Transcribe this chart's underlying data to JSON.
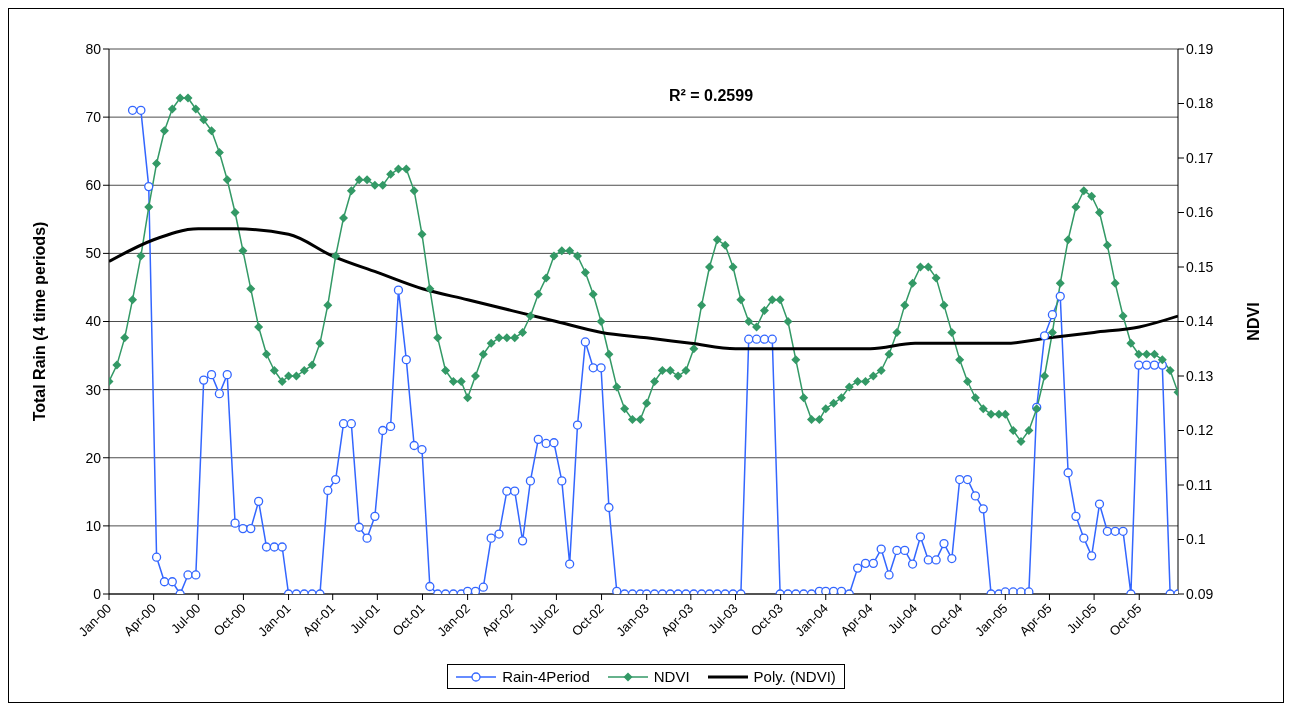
{
  "chart_data": {
    "type": "line",
    "ylabel": "Total Rain (4 time periods)",
    "y2label": "NDVI",
    "annotations": [
      "R² = 0.2599"
    ],
    "x": [
      "2000-01-01",
      "2000-01-17",
      "2000-02-02",
      "2000-02-18",
      "2000-03-06",
      "2000-03-22",
      "2000-04-07",
      "2000-04-23",
      "2000-05-09",
      "2000-05-25",
      "2000-06-10",
      "2000-06-26",
      "2000-07-12",
      "2000-07-28",
      "2000-08-13",
      "2000-08-29",
      "2000-09-14",
      "2000-09-30",
      "2000-10-16",
      "2000-11-01",
      "2000-11-17",
      "2000-12-03",
      "2000-12-19",
      "2001-01-01",
      "2001-01-17",
      "2001-02-02",
      "2001-02-18",
      "2001-03-06",
      "2001-03-22",
      "2001-04-07",
      "2001-04-23",
      "2001-05-09",
      "2001-05-25",
      "2001-06-10",
      "2001-06-26",
      "2001-07-12",
      "2001-07-28",
      "2001-08-13",
      "2001-08-29",
      "2001-09-14",
      "2001-09-30",
      "2001-10-16",
      "2001-11-01",
      "2001-11-17",
      "2001-12-03",
      "2001-12-19",
      "2002-01-01",
      "2002-01-17",
      "2002-02-02",
      "2002-02-18",
      "2002-03-06",
      "2002-03-22",
      "2002-04-07",
      "2002-04-23",
      "2002-05-09",
      "2002-05-25",
      "2002-06-10",
      "2002-06-26",
      "2002-07-12",
      "2002-07-28",
      "2002-08-13",
      "2002-08-29",
      "2002-09-14",
      "2002-09-30",
      "2002-10-16",
      "2002-11-01",
      "2002-11-17",
      "2002-12-03",
      "2002-12-19",
      "2003-01-01",
      "2003-01-17",
      "2003-02-02",
      "2003-02-18",
      "2003-03-06",
      "2003-03-22",
      "2003-04-07",
      "2003-04-23",
      "2003-05-09",
      "2003-05-25",
      "2003-06-10",
      "2003-06-26",
      "2003-07-12",
      "2003-07-28",
      "2003-08-13",
      "2003-08-29",
      "2003-09-14",
      "2003-09-30",
      "2003-10-16",
      "2003-11-01",
      "2003-11-17",
      "2003-12-03",
      "2003-12-19",
      "2004-01-01",
      "2004-01-17",
      "2004-02-02",
      "2004-02-18",
      "2004-03-06",
      "2004-03-22",
      "2004-04-07",
      "2004-04-23",
      "2004-05-09",
      "2004-05-25",
      "2004-06-10",
      "2004-06-26",
      "2004-07-12",
      "2004-07-28",
      "2004-08-13",
      "2004-08-29",
      "2004-09-14",
      "2004-09-30",
      "2004-10-16",
      "2004-11-01",
      "2004-11-17",
      "2004-12-03",
      "2004-12-19",
      "2005-01-01",
      "2005-01-17",
      "2005-02-02",
      "2005-02-18",
      "2005-03-06",
      "2005-03-22",
      "2005-04-07",
      "2005-04-23",
      "2005-05-09",
      "2005-05-25",
      "2005-06-10",
      "2005-06-26",
      "2005-07-12",
      "2005-07-28",
      "2005-08-13",
      "2005-08-29",
      "2005-09-14",
      "2005-09-30",
      "2005-10-16",
      "2005-11-01",
      "2005-11-17",
      "2005-12-03",
      "2005-12-19"
    ],
    "series": [
      {
        "name": "Rain-4Period",
        "color": "#3366ff",
        "marker": "circle",
        "line_style": "solid",
        "values": [
          null,
          null,
          null,
          71.0,
          71.0,
          59.8,
          5.4,
          1.8,
          1.8,
          0,
          2.8,
          2.8,
          31.4,
          32.2,
          29.4,
          32.2,
          10.4,
          9.6,
          9.6,
          13.6,
          6.9,
          6.9,
          6.9,
          0,
          0,
          0,
          0,
          0,
          15.2,
          16.8,
          25.0,
          25.0,
          9.8,
          8.2,
          11.4,
          24.0,
          24.6,
          44.6,
          34.4,
          21.8,
          21.2,
          1.1,
          0,
          0,
          0,
          0,
          0.4,
          0.4,
          1.0,
          8.2,
          8.8,
          15.1,
          15.1,
          7.8,
          16.6,
          22.7,
          22.1,
          22.2,
          16.6,
          4.4,
          24.8,
          37.0,
          33.2,
          33.2,
          12.7,
          0.4,
          0,
          0,
          0,
          0,
          0,
          0,
          0,
          0,
          0,
          0,
          0,
          0,
          0,
          0,
          0,
          0,
          37.4,
          37.4,
          37.4,
          37.4,
          0,
          0,
          0,
          0,
          0,
          0.4,
          0.4,
          0.4,
          0.4,
          0,
          3.8,
          4.5,
          4.5,
          6.6,
          2.8,
          6.4,
          6.4,
          4.4,
          8.4,
          5.0,
          5.0,
          7.4,
          5.2,
          16.8,
          16.8,
          14.4,
          12.5,
          0,
          0,
          0.3,
          0.3,
          0.3,
          0.3,
          27.4,
          37.9,
          41.0,
          43.7,
          17.8,
          11.4,
          8.2,
          5.6,
          13.2,
          9.2,
          9.2,
          9.2,
          0,
          33.6,
          33.6,
          33.6,
          33.6,
          0,
          0
        ]
      },
      {
        "name": "NDVI",
        "color": "#339966",
        "marker": "diamond",
        "line_style": "solid",
        "axis": "y2",
        "values": [
          0.129,
          0.132,
          0.137,
          0.144,
          0.152,
          0.161,
          0.169,
          0.175,
          0.179,
          0.181,
          0.181,
          0.179,
          0.177,
          0.175,
          0.171,
          0.166,
          0.16,
          0.153,
          0.146,
          0.139,
          0.134,
          0.131,
          0.129,
          0.13,
          0.13,
          0.131,
          0.132,
          0.136,
          0.143,
          0.152,
          0.159,
          0.164,
          0.166,
          0.166,
          0.165,
          0.165,
          0.167,
          0.168,
          0.168,
          0.164,
          0.156,
          0.146,
          0.137,
          0.131,
          0.129,
          0.129,
          0.126,
          0.13,
          0.134,
          0.136,
          0.137,
          0.137,
          0.137,
          0.138,
          0.141,
          0.145,
          0.148,
          0.152,
          0.153,
          0.153,
          0.152,
          0.149,
          0.145,
          0.14,
          0.134,
          0.128,
          0.124,
          0.122,
          0.122,
          0.125,
          0.129,
          0.131,
          0.131,
          0.13,
          0.131,
          0.135,
          0.143,
          0.15,
          0.155,
          0.154,
          0.15,
          0.144,
          0.14,
          0.139,
          0.142,
          0.144,
          0.144,
          0.14,
          0.133,
          0.126,
          0.122,
          0.122,
          0.124,
          0.125,
          0.126,
          0.128,
          0.129,
          0.129,
          0.13,
          0.131,
          0.134,
          0.138,
          0.143,
          0.147,
          0.15,
          0.15,
          0.148,
          0.143,
          0.138,
          0.133,
          0.129,
          0.126,
          0.124,
          0.123,
          0.123,
          0.123,
          0.12,
          0.118,
          0.12,
          0.124,
          0.13,
          0.138,
          0.147,
          0.155,
          0.161,
          0.164,
          0.163,
          0.16,
          0.154,
          0.147,
          0.141,
          0.136,
          0.134,
          0.134,
          0.134,
          0.133,
          0.131,
          0.127
        ]
      },
      {
        "name": "Poly. (NDVI)",
        "color": "#000000",
        "marker": "none",
        "line_style": "solid",
        "axis": "y2",
        "x": [
          "2000-01-01",
          "2000-04-01",
          "2000-07-01",
          "2000-09-15",
          "2001-01-01",
          "2001-04-01",
          "2001-07-01",
          "2001-10-01",
          "2002-01-01",
          "2002-04-01",
          "2002-07-01",
          "2002-10-01",
          "2003-01-01",
          "2003-04-01",
          "2003-07-01",
          "2003-10-01",
          "2004-01-01",
          "2004-04-01",
          "2004-07-01",
          "2004-10-01",
          "2005-01-01",
          "2005-04-01",
          "2005-07-01",
          "2005-10-01",
          "2005-12-19"
        ],
        "values": [
          0.151,
          0.155,
          0.157,
          0.157,
          0.156,
          0.152,
          0.149,
          0.146,
          0.144,
          0.142,
          0.14,
          0.138,
          0.137,
          0.136,
          0.135,
          0.135,
          0.135,
          0.135,
          0.136,
          0.136,
          0.136,
          0.137,
          0.138,
          0.139,
          0.141
        ]
      }
    ],
    "xlim": [
      "2000-01-01",
      "2005-12-19"
    ],
    "xticks": [
      {
        "value": "2000-01-01",
        "label": "Jan-00"
      },
      {
        "value": "2000-04-01",
        "label": "Apr-00"
      },
      {
        "value": "2000-07-01",
        "label": "Jul-00"
      },
      {
        "value": "2000-10-01",
        "label": "Oct-00"
      },
      {
        "value": "2001-01-01",
        "label": "Jan-01"
      },
      {
        "value": "2001-04-01",
        "label": "Apr-01"
      },
      {
        "value": "2001-07-01",
        "label": "Jul-01"
      },
      {
        "value": "2001-10-01",
        "label": "Oct-01"
      },
      {
        "value": "2002-01-01",
        "label": "Jan-02"
      },
      {
        "value": "2002-04-01",
        "label": "Apr-02"
      },
      {
        "value": "2002-07-01",
        "label": "Jul-02"
      },
      {
        "value": "2002-10-01",
        "label": "Oct-02"
      },
      {
        "value": "2003-01-01",
        "label": "Jan-03"
      },
      {
        "value": "2003-04-01",
        "label": "Apr-03"
      },
      {
        "value": "2003-07-01",
        "label": "Jul-03"
      },
      {
        "value": "2003-10-01",
        "label": "Oct-03"
      },
      {
        "value": "2004-01-01",
        "label": "Jan-04"
      },
      {
        "value": "2004-04-01",
        "label": "Apr-04"
      },
      {
        "value": "2004-07-01",
        "label": "Jul-04"
      },
      {
        "value": "2004-10-01",
        "label": "Oct-04"
      },
      {
        "value": "2005-01-01",
        "label": "Jan-05"
      },
      {
        "value": "2005-04-01",
        "label": "Apr-05"
      },
      {
        "value": "2005-07-01",
        "label": "Jul-05"
      },
      {
        "value": "2005-10-01",
        "label": "Oct-05"
      }
    ],
    "ylim": [
      0,
      80
    ],
    "yticks": [
      0,
      10,
      20,
      30,
      40,
      50,
      60,
      70,
      80
    ],
    "y2lim": [
      0.09,
      0.19
    ],
    "y2ticks": [
      0.09,
      0.1,
      0.11,
      0.12,
      0.13,
      0.14,
      0.15,
      0.16,
      0.17,
      0.18,
      0.19
    ],
    "grid": "y",
    "legend": "bottom"
  }
}
